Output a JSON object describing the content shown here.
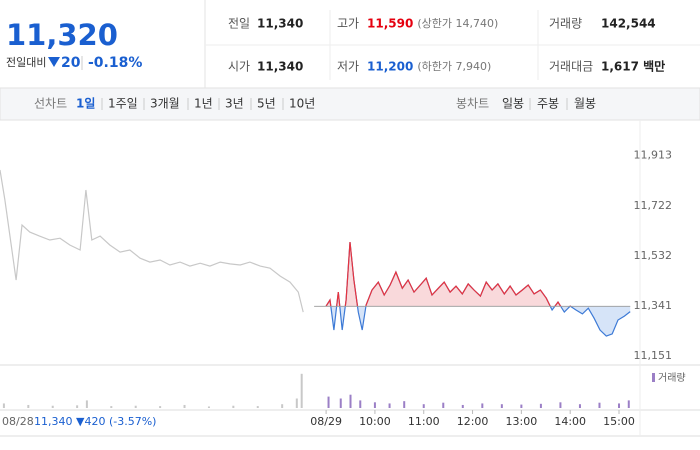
{
  "header": {
    "price": "11,320",
    "change_label": "전일대비",
    "change": "20",
    "change_rate": "-0.18%",
    "stats": [
      [
        {
          "label": "전일",
          "value": "11,340"
        },
        {
          "label": "고가",
          "value": "11,590",
          "note": "(상한가 14,740)",
          "color": "#e5000f"
        },
        {
          "label": "거래량",
          "value": "142,544"
        }
      ],
      [
        {
          "label": "시가",
          "value": "11,340"
        },
        {
          "label": "저가",
          "value": "11,200",
          "note": "(하한가 7,940)",
          "color": "#1a5fd0"
        },
        {
          "label": "거래대금",
          "value": "1,617 백만"
        }
      ]
    ]
  },
  "toolbar": {
    "line_label": "선차트",
    "periods": [
      "1일",
      "1주일",
      "3개월",
      "1년",
      "3년",
      "5년",
      "10년"
    ],
    "selected": 0,
    "candle_label": "봉차트",
    "candles": [
      "일봉",
      "주봉",
      "월봉"
    ]
  },
  "chart_data": {
    "type": "line",
    "xlim": [
      2.32,
      15.43
    ],
    "xticks": [
      {
        "value": 9,
        "label": "08/29"
      },
      {
        "value": 10,
        "label": "10:00"
      },
      {
        "value": 11,
        "label": "11:00"
      },
      {
        "value": 12,
        "label": "12:00"
      },
      {
        "value": 13,
        "label": "13:00"
      },
      {
        "value": 14,
        "label": "14:00"
      },
      {
        "value": 15,
        "label": "15:00"
      }
    ],
    "ylim": [
      11117,
      12029
    ],
    "yticks": [
      {
        "value": 11913,
        "label": "11,913"
      },
      {
        "value": 11722,
        "label": "11,722"
      },
      {
        "value": 11532,
        "label": "11,532"
      },
      {
        "value": 11341,
        "label": "11,341"
      },
      {
        "value": 11151,
        "label": "11,151"
      }
    ],
    "grid": false,
    "baseline": 11340,
    "series": [
      {
        "color": "#c8c8c8",
        "x": [
          2.32,
          2.42,
          2.52,
          2.65,
          2.77,
          2.93,
          3.13,
          3.34,
          3.55,
          3.75,
          3.96,
          4.08,
          4.2,
          4.37,
          4.57,
          4.78,
          4.98,
          5.19,
          5.39,
          5.6,
          5.8,
          6.01,
          6.21,
          6.42,
          6.62,
          6.83,
          7.03,
          7.24,
          7.44,
          7.65,
          7.85,
          8.06,
          8.26,
          8.43,
          8.53
        ],
        "values": [
          11858,
          11744,
          11611,
          11440,
          11649,
          11622,
          11607,
          11592,
          11599,
          11573,
          11554,
          11782,
          11592,
          11607,
          11573,
          11546,
          11554,
          11523,
          11508,
          11516,
          11497,
          11508,
          11493,
          11504,
          11493,
          11508,
          11501,
          11497,
          11508,
          11493,
          11485,
          11455,
          11432,
          11394,
          11318
        ]
      },
      {
        "color": "#3d7ad6",
        "up_color": "#e8333d",
        "x": [
          9,
          9.08,
          9.16,
          9.25,
          9.33,
          9.41,
          9.49,
          9.57,
          9.66,
          9.74,
          9.82,
          9.94,
          10.07,
          10.19,
          10.31,
          10.43,
          10.56,
          10.68,
          10.8,
          10.93,
          11.05,
          11.17,
          11.3,
          11.42,
          11.54,
          11.66,
          11.79,
          11.91,
          12.03,
          12.16,
          12.28,
          12.4,
          12.52,
          12.65,
          12.77,
          12.89,
          13.02,
          13.14,
          13.26,
          13.39,
          13.51,
          13.63,
          13.75,
          13.88,
          14,
          14.12,
          14.25,
          14.37,
          14.49,
          14.61,
          14.74,
          14.86,
          14.98,
          15.11,
          15.23
        ],
        "values": [
          11341,
          11364,
          11250,
          11394,
          11250,
          11364,
          11584,
          11440,
          11318,
          11250,
          11345,
          11402,
          11432,
          11383,
          11421,
          11470,
          11409,
          11440,
          11394,
          11421,
          11447,
          11383,
          11409,
          11432,
          11394,
          11417,
          11387,
          11425,
          11402,
          11379,
          11432,
          11402,
          11425,
          11387,
          11417,
          11383,
          11402,
          11421,
          11387,
          11402,
          11371,
          11326,
          11356,
          11318,
          11341,
          11326,
          11311,
          11333,
          11295,
          11250,
          11227,
          11235,
          11288,
          11303,
          11320
        ]
      }
    ],
    "annotations": [
      "08/28",
      "11,340 ▼420 (-3.57%)"
    ],
    "volume": {
      "label": "거래량",
      "color": "#9b7fc6",
      "ylim": [
        0,
        100
      ],
      "series": [
        {
          "color": "#c8c8c8",
          "x": [
            2.4,
            2.9,
            3.4,
            3.9,
            4.1,
            4.6,
            5.1,
            5.6,
            6.1,
            6.6,
            7.1,
            7.6,
            8.1,
            8.4,
            8.5
          ],
          "values": [
            12,
            8,
            6,
            7,
            20,
            5,
            6,
            5,
            8,
            4,
            6,
            5,
            10,
            25,
            90
          ]
        },
        {
          "color": "#9b7fc6",
          "x": [
            9.05,
            9.3,
            9.5,
            9.7,
            10,
            10.3,
            10.6,
            11,
            11.4,
            11.8,
            12.2,
            12.6,
            13,
            13.4,
            13.8,
            14.2,
            14.6,
            15,
            15.2
          ],
          "values": [
            30,
            25,
            35,
            20,
            15,
            12,
            18,
            10,
            14,
            8,
            12,
            10,
            9,
            11,
            15,
            10,
            14,
            12,
            20
          ]
        }
      ]
    }
  }
}
